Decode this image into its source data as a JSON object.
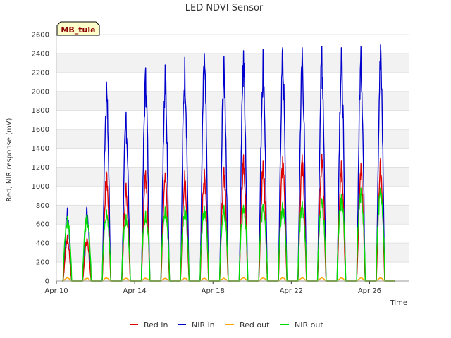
{
  "chart_data": {
    "type": "line",
    "title": "LED NDVI Sensor",
    "xlabel": "Time",
    "ylabel": "Red, NIR response (mV)",
    "site_badge": "MB_tule",
    "ylim": [
      0,
      2600
    ],
    "yticks": [
      0,
      200,
      400,
      600,
      800,
      1000,
      1200,
      1400,
      1600,
      1800,
      2000,
      2200,
      2400,
      2600
    ],
    "xlim": [
      "2024-04-10",
      "2024-04-28"
    ],
    "xticks": [
      {
        "date": "2024-04-10",
        "label": "Apr 10"
      },
      {
        "date": "2024-04-14",
        "label": "Apr 14"
      },
      {
        "date": "2024-04-18",
        "label": "Apr 18"
      },
      {
        "date": "2024-04-22",
        "label": "Apr 22"
      },
      {
        "date": "2024-04-26",
        "label": "Apr 26"
      }
    ],
    "grid": true,
    "legend_position": "bottom",
    "days": [
      "2024-04-10",
      "2024-04-11",
      "2024-04-12",
      "2024-04-13",
      "2024-04-14",
      "2024-04-15",
      "2024-04-16",
      "2024-04-17",
      "2024-04-18",
      "2024-04-19",
      "2024-04-20",
      "2024-04-21",
      "2024-04-22",
      "2024-04-23",
      "2024-04-24",
      "2024-04-25",
      "2024-04-26"
    ],
    "series": [
      {
        "name": "Red in",
        "color": "#dd0000",
        "daily_peak": [
          480,
          450,
          1150,
          1030,
          1160,
          1140,
          1160,
          1180,
          1200,
          1330,
          1270,
          1310,
          1330,
          1340,
          1270,
          1240,
          1290
        ]
      },
      {
        "name": "NIR in",
        "color": "#0000cc",
        "daily_peak": [
          770,
          780,
          2100,
          1780,
          2250,
          2280,
          2360,
          2400,
          2370,
          2430,
          2440,
          2460,
          2460,
          2470,
          2460,
          2470,
          2490
        ]
      },
      {
        "name": "Red out",
        "color": "#ffa500",
        "daily_peak": [
          35,
          30,
          35,
          30,
          30,
          30,
          30,
          30,
          30,
          35,
          35,
          35,
          35,
          35,
          35,
          35,
          35
        ]
      },
      {
        "name": "NIR out",
        "color": "#00dd00",
        "daily_peak": [
          680,
          700,
          750,
          700,
          740,
          780,
          790,
          790,
          800,
          800,
          810,
          830,
          840,
          870,
          910,
          980,
          980
        ]
      }
    ]
  }
}
